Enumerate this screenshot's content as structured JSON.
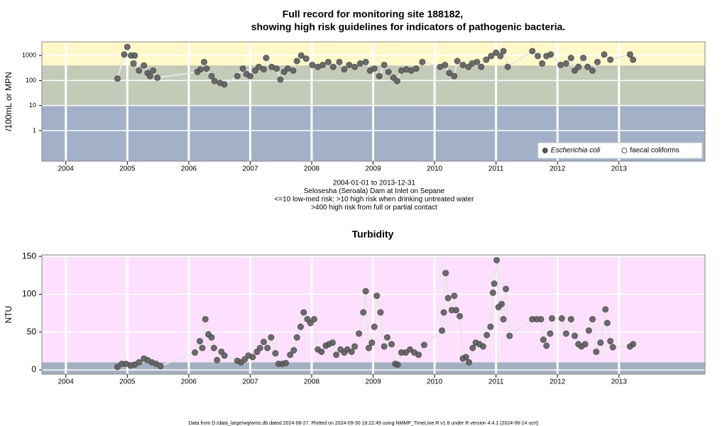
{
  "chart_data": [
    {
      "type": "scatter-line",
      "title": [
        "Full record for monitoring site 188182,",
        "showing high risk guidelines for indicators of pathogenic bacteria."
      ],
      "ylabel": "/100mL or MPN",
      "notes": [
        "2004-01-01 to 2013-12-31",
        "Selosesha (Seroala) Dam at Inlet on Sepane",
        "<=10 low-med risk; >10 high risk when drinking untreated water",
        ">400 high risk from full or partial contact"
      ],
      "log_y": true,
      "xlim": [
        2003.61,
        2014.4
      ],
      "xticks": [
        2004,
        2005,
        2006,
        2007,
        2008,
        2009,
        2010,
        2011,
        2012,
        2013
      ],
      "ylim": [
        0.06,
        3500
      ],
      "yticks": [
        1,
        10,
        100,
        1000
      ],
      "grid": true,
      "legend": "bottom-right",
      "bands": [
        {
          "from": 400,
          "color": "#fff8c8"
        },
        {
          "from": 10,
          "to": 400,
          "color": "#c3cab8"
        },
        {
          "to": 10,
          "color": "#a2b1c8"
        }
      ],
      "series": [
        {
          "name": "Escherichia coli",
          "marker": "filled",
          "font_style": "italic",
          "color": "#555555",
          "x": [
            2004.84,
            2004.95,
            2005.0,
            2005.06,
            2005.1,
            2005.12,
            2005.19,
            2005.27,
            2005.33,
            2005.37,
            2005.42,
            2005.49,
            2006.14,
            2006.19,
            2006.25,
            2006.29,
            2006.37,
            2006.42,
            2006.51,
            2006.58,
            2006.79,
            2006.88,
            2006.94,
            2007.0,
            2007.08,
            2007.14,
            2007.22,
            2007.26,
            2007.35,
            2007.43,
            2007.49,
            2007.55,
            2007.61,
            2007.7,
            2007.76,
            2007.83,
            2007.91,
            2008.01,
            2008.1,
            2008.18,
            2008.27,
            2008.35,
            2008.45,
            2008.53,
            2008.61,
            2008.7,
            2008.79,
            2008.88,
            2008.95,
            2009.02,
            2009.1,
            2009.18,
            2009.25,
            2009.33,
            2009.39,
            2009.46,
            2009.54,
            2009.62,
            2009.7,
            2009.8,
            2010.09,
            2010.17,
            2010.24,
            2010.32,
            2010.37,
            2010.46,
            2010.55,
            2010.61,
            2010.69,
            2010.76,
            2010.84,
            2010.92,
            2011.0,
            2011.07,
            2011.12,
            2011.19,
            2011.59,
            2011.68,
            2011.75,
            2011.82,
            2011.89,
            2012.05,
            2012.14,
            2012.22,
            2012.28,
            2012.34,
            2012.42,
            2012.49,
            2012.57,
            2012.65,
            2012.76,
            2012.86,
            2013.18,
            2013.23
          ],
          "values": [
            120,
            1100,
            2200,
            1000,
            480,
            1000,
            250,
            400,
            200,
            150,
            250,
            130,
            220,
            280,
            550,
            300,
            150,
            95,
            80,
            70,
            150,
            300,
            180,
            150,
            250,
            350,
            280,
            800,
            350,
            300,
            110,
            220,
            300,
            250,
            600,
            1000,
            750,
            420,
            350,
            420,
            550,
            350,
            550,
            280,
            420,
            350,
            480,
            550,
            250,
            300,
            150,
            420,
            220,
            130,
            95,
            250,
            280,
            250,
            300,
            550,
            350,
            420,
            200,
            150,
            600,
            420,
            350,
            480,
            550,
            350,
            680,
            950,
            1300,
            950,
            1500,
            350,
            1500,
            950,
            480,
            950,
            1100,
            420,
            480,
            800,
            250,
            350,
            800,
            350,
            250,
            550,
            1100,
            680,
            1100,
            680
          ]
        },
        {
          "name": "faecal coliforms",
          "marker": "open",
          "color": "#555555",
          "x": [],
          "values": []
        }
      ]
    },
    {
      "type": "scatter-line",
      "title": [
        "Turbidity"
      ],
      "ylabel": "NTU",
      "log_y": false,
      "xlim": [
        2003.61,
        2014.4
      ],
      "xticks": [
        2004,
        2005,
        2006,
        2007,
        2008,
        2009,
        2010,
        2011,
        2012,
        2013
      ],
      "ylim": [
        -5.6,
        152
      ],
      "yticks": [
        0,
        50,
        100,
        150
      ],
      "grid": true,
      "bands": [
        {
          "from": 10,
          "color": "#fde0fd"
        },
        {
          "to": 10,
          "color": "#a4b0c0"
        }
      ],
      "series": [
        {
          "marker": "filled",
          "color": "#555555",
          "x": [
            2004.84,
            2004.91,
            2004.98,
            2005.05,
            2005.12,
            2005.19,
            2005.27,
            2005.33,
            2005.4,
            2005.47,
            2005.54,
            2006.1,
            2006.18,
            2006.22,
            2006.27,
            2006.32,
            2006.37,
            2006.41,
            2006.46,
            2006.53,
            2006.58,
            2006.79,
            2006.85,
            2006.91,
            2006.97,
            2007.04,
            2007.11,
            2007.16,
            2007.22,
            2007.28,
            2007.34,
            2007.41,
            2007.46,
            2007.52,
            2007.58,
            2007.65,
            2007.71,
            2007.76,
            2007.82,
            2007.87,
            2007.93,
            2007.98,
            2008.04,
            2008.1,
            2008.16,
            2008.23,
            2008.28,
            2008.34,
            2008.4,
            2008.47,
            2008.53,
            2008.58,
            2008.65,
            2008.7,
            2008.77,
            2008.84,
            2008.88,
            2008.93,
            2008.98,
            2009.02,
            2009.06,
            2009.12,
            2009.18,
            2009.23,
            2009.3,
            2009.36,
            2009.4,
            2009.46,
            2009.53,
            2009.6,
            2009.67,
            2009.74,
            2009.83,
            2010.12,
            2010.15,
            2010.18,
            2010.22,
            2010.28,
            2010.32,
            2010.35,
            2010.41,
            2010.46,
            2010.51,
            2010.56,
            2010.62,
            2010.67,
            2010.73,
            2010.79,
            2010.85,
            2010.91,
            2010.95,
            2010.97,
            2011.01,
            2011.04,
            2011.09,
            2011.12,
            2011.16,
            2011.22,
            2011.59,
            2011.66,
            2011.73,
            2011.77,
            2011.82,
            2011.88,
            2011.91,
            2012.07,
            2012.14,
            2012.22,
            2012.28,
            2012.34,
            2012.39,
            2012.45,
            2012.51,
            2012.57,
            2012.63,
            2012.7,
            2012.78,
            2012.81,
            2012.86,
            2012.9,
            2013.18,
            2013.23
          ],
          "values": [
            4,
            8,
            8,
            6,
            7,
            10,
            15,
            13,
            10,
            8,
            5,
            23,
            38,
            29,
            67,
            47,
            43,
            29,
            13,
            24,
            19,
            12,
            10,
            14,
            19,
            17,
            24,
            29,
            37,
            29,
            43,
            22,
            8,
            8,
            9,
            20,
            26,
            43,
            57,
            76,
            67,
            62,
            67,
            27,
            24,
            32,
            34,
            36,
            20,
            27,
            23,
            27,
            24,
            31,
            48,
            76,
            104,
            29,
            36,
            57,
            98,
            76,
            31,
            43,
            34,
            8,
            7,
            23,
            23,
            27,
            23,
            20,
            33,
            52,
            76,
            128,
            95,
            79,
            98,
            79,
            71,
            15,
            17,
            10,
            29,
            36,
            34,
            31,
            46,
            57,
            102,
            114,
            145,
            83,
            87,
            67,
            107,
            45,
            67,
            67,
            67,
            40,
            32,
            48,
            68,
            68,
            48,
            67,
            45,
            34,
            31,
            34,
            52,
            67,
            24,
            36,
            80,
            62,
            38,
            30,
            31,
            34
          ]
        }
      ]
    }
  ],
  "footer": "Data from D:/data_large/wq/wms.db dated 2024-08-27. Plotted on 2024-09-30 18:22:49 using NMMP_TimeLine.R v1.8 under R version 4.4.1 (2024-06-14 ucrt)"
}
